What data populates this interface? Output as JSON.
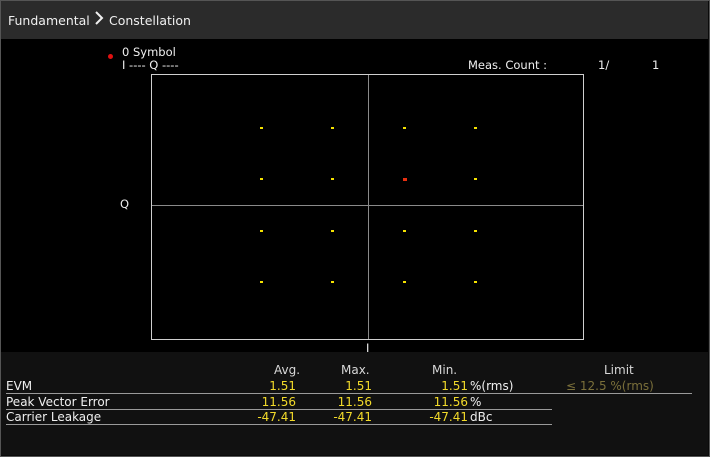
{
  "breadcrumb": {
    "root": "Fundamental",
    "current": "Constellation"
  },
  "legend": {
    "symbol_label": "0 Symbol",
    "iq_readout": "I ---- Q ----",
    "marker_color": "#e01010"
  },
  "meas": {
    "label": "Meas. Count :",
    "current": "1/",
    "total": "1"
  },
  "axes": {
    "y_label": "Q",
    "x_label": "I"
  },
  "chart_data": {
    "type": "scatter",
    "xlabel": "I",
    "ylabel": "Q",
    "series": [
      {
        "color": "#f5e200",
        "points": [
          [
            -3,
            3
          ],
          [
            -1,
            3
          ],
          [
            1,
            3
          ],
          [
            3,
            3
          ],
          [
            -3,
            1
          ],
          [
            -1,
            1
          ],
          [
            3,
            1
          ],
          [
            -3,
            -1
          ],
          [
            -1,
            -1
          ],
          [
            1,
            -1
          ],
          [
            3,
            -1
          ],
          [
            -3,
            -3
          ],
          [
            -1,
            -3
          ],
          [
            1,
            -3
          ],
          [
            3,
            -3
          ]
        ]
      },
      {
        "name": "0 Symbol",
        "color": "#e83010",
        "points": [
          [
            1,
            1
          ]
        ]
      }
    ],
    "xlim": [
      -5,
      5
    ],
    "ylim": [
      -5,
      5
    ]
  },
  "table": {
    "headers": {
      "avg": "Avg.",
      "max": "Max.",
      "min": "Min.",
      "limit": "Limit"
    },
    "rows": [
      {
        "name": "EVM",
        "avg": "1.51",
        "max": "1.51",
        "min": "1.51",
        "unit": "%(rms)",
        "limit": "≤ 12.5 %(rms)"
      },
      {
        "name": "Peak Vector Error",
        "avg": "11.56",
        "max": "11.56",
        "min": "11.56",
        "unit": "%",
        "limit": ""
      },
      {
        "name": "Carrier Leakage",
        "avg": "-47.41",
        "max": "-47.41",
        "min": "-47.41",
        "unit": "dBc",
        "limit": ""
      }
    ]
  },
  "colors": {
    "value": "#f2da2a",
    "limit": "#7a6f3a",
    "point": "#f5e200"
  }
}
